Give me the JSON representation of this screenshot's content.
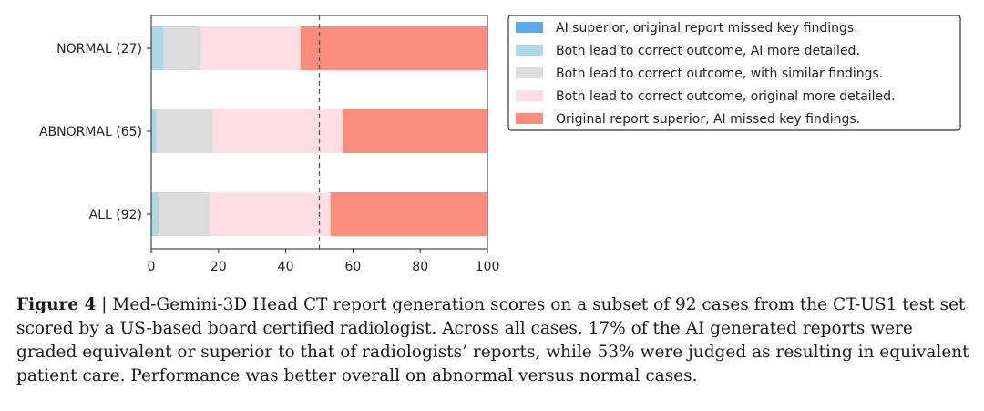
{
  "chart_data": {
    "type": "bar",
    "orientation": "horizontal",
    "stacked": true,
    "categories": [
      "NORMAL (27)",
      "ABNORMAL (65)",
      "ALL (92)"
    ],
    "series": [
      {
        "name": "AI superior, original report missed key findings.",
        "color": "#5da9e9",
        "values": [
          0,
          0,
          0
        ]
      },
      {
        "name": "Both lead to correct outcome, AI more detailed.",
        "color": "#add8e6",
        "values": [
          3.7,
          1.5,
          2.2
        ]
      },
      {
        "name": "Both lead to correct outcome, with similar findings.",
        "color": "#dcdcdc",
        "values": [
          11.1,
          16.9,
          15.2
        ]
      },
      {
        "name": "Both lead to correct outcome, original more detailed.",
        "color": "#fcdde3",
        "values": [
          29.6,
          38.5,
          35.9
        ]
      },
      {
        "name": "Original report superior, AI missed key findings.",
        "color": "#fa8c7c",
        "values": [
          55.6,
          43.1,
          46.7
        ]
      }
    ],
    "xlim": [
      0,
      100
    ],
    "xticks": [
      "0",
      "20",
      "40",
      "60",
      "80",
      "100"
    ],
    "reference_line": 50,
    "legend_position": "top-right",
    "grid": false,
    "xlabel": "",
    "ylabel": "",
    "title": ""
  },
  "caption": {
    "label": "Figure 4",
    "separator": " | ",
    "text": "Med-Gemini-3D Head CT report generation scores on a subset of 92 cases from the CT-US1 test set scored by a US-based board certified radiologist. Across all cases, 17% of the AI generated reports were graded equivalent or superior to that of radiologists’ reports, while 53% were judged as resulting in equivalent patient care. Performance was better overall on abnormal versus normal cases."
  }
}
